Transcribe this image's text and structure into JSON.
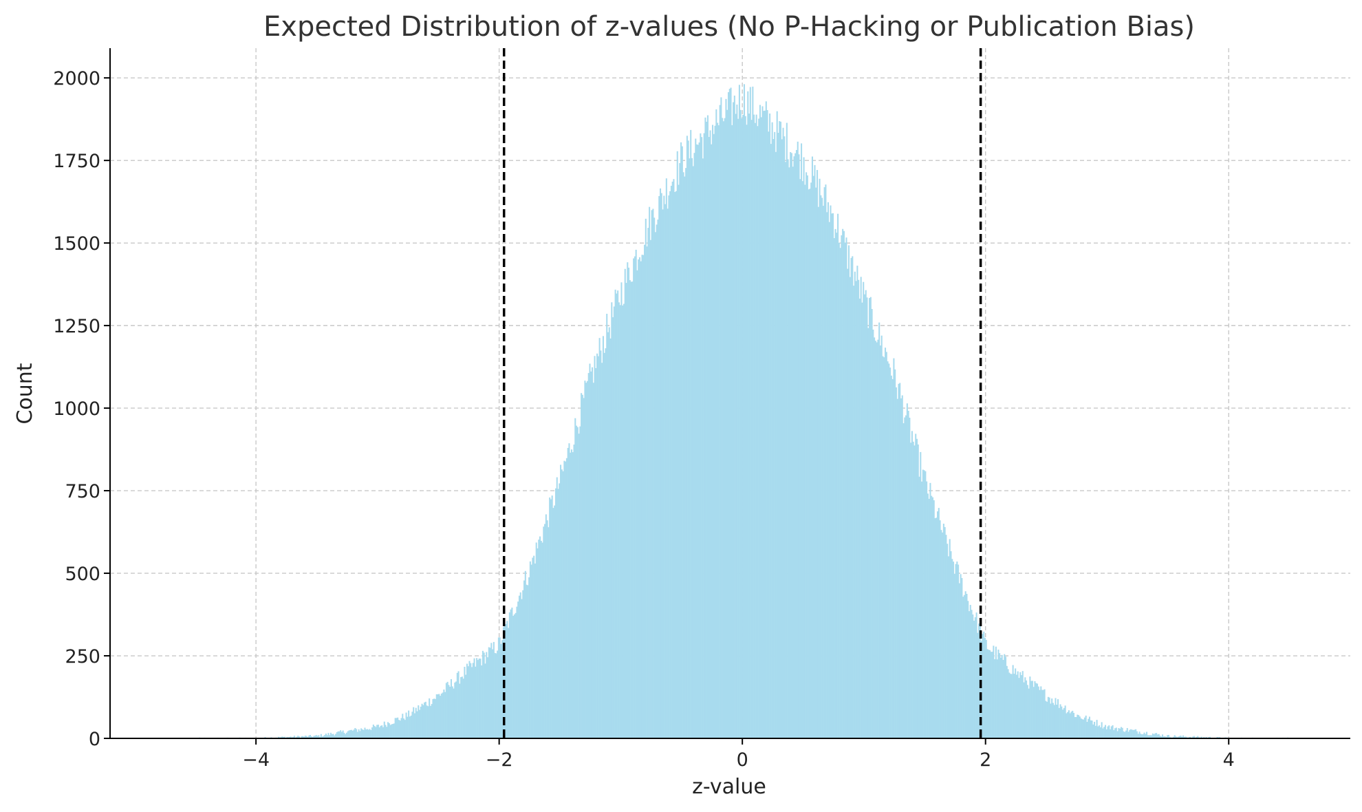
{
  "chart_data": {
    "type": "bar",
    "subtype": "histogram",
    "title": "Expected Distribution of z-values (No P-Hacking or Publication Bias)",
    "xlabel": "z-value",
    "ylabel": "Count",
    "xlim": [
      -5.2,
      5.0
    ],
    "ylim": [
      0,
      2090
    ],
    "x_ticks": [
      -4,
      -2,
      0,
      2,
      4
    ],
    "x_tick_labels": [
      "−4",
      "−2",
      "0",
      "2",
      "4"
    ],
    "y_ticks": [
      0,
      250,
      500,
      750,
      1000,
      1250,
      1500,
      1750,
      2000
    ],
    "y_tick_labels": [
      "0",
      "250",
      "500",
      "750",
      "1000",
      "1250",
      "1500",
      "1750",
      "2000"
    ],
    "grid": true,
    "bar_color": "#a8dbee",
    "bin_range": [
      -4.5,
      4.5
    ],
    "bin_width": 0.01,
    "bin_centers_sampled": [
      -4.0,
      -3.5,
      -3.0,
      -2.75,
      -2.5,
      -2.25,
      -2.0,
      -1.75,
      -1.5,
      -1.25,
      -1.0,
      -0.75,
      -0.5,
      -0.25,
      0.0,
      0.25,
      0.5,
      0.75,
      1.0,
      1.25,
      1.5,
      1.75,
      2.0,
      2.25,
      2.5,
      2.75,
      3.0,
      3.5,
      4.0
    ],
    "counts_sampled": [
      1,
      7,
      35,
      70,
      130,
      210,
      285,
      510,
      780,
      1090,
      1350,
      1570,
      1750,
      1850,
      1940,
      1850,
      1750,
      1580,
      1330,
      1100,
      780,
      520,
      285,
      200,
      130,
      70,
      35,
      7,
      1
    ],
    "reference_lines": [
      {
        "x": -1.96,
        "color": "#000000",
        "style": "dashed"
      },
      {
        "x": 1.96,
        "color": "#000000",
        "style": "dashed"
      }
    ]
  }
}
